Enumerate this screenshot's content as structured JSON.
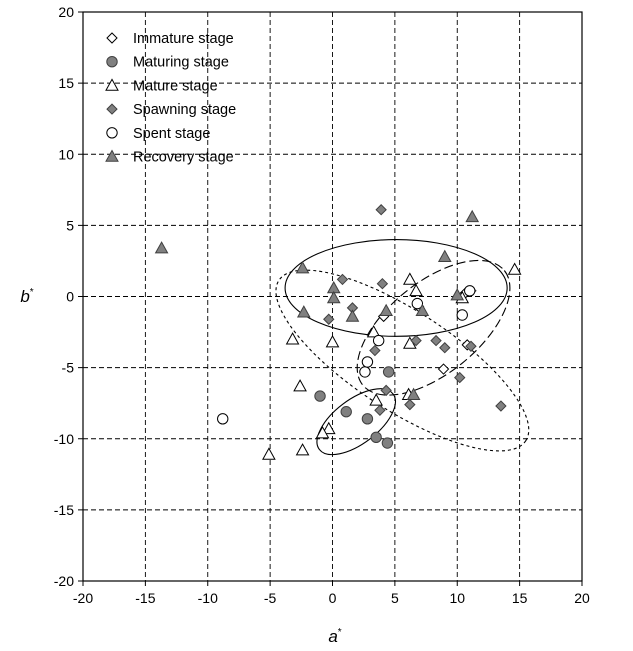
{
  "chart_data": {
    "type": "scatter",
    "title": "",
    "xlabel": "a",
    "xlabel_sup": "*",
    "ylabel": "b",
    "ylabel_sup": "*",
    "xlim": [
      -20,
      20
    ],
    "ylim": [
      -20,
      20
    ],
    "xticks": [
      -20,
      -15,
      -10,
      -5,
      0,
      5,
      10,
      15,
      20
    ],
    "yticks": [
      -20,
      -15,
      -10,
      -5,
      0,
      5,
      10,
      15,
      20
    ],
    "grid": "dashed",
    "legend_position": "top-left",
    "series": [
      {
        "name": "Immature stage",
        "marker": "diamond-open",
        "points": [
          [
            10.8,
            -3.4
          ],
          [
            8.9,
            -5.1
          ],
          [
            4.1,
            -1.4
          ],
          [
            6.9,
            -0.7
          ],
          [
            10.6,
            0.2
          ]
        ]
      },
      {
        "name": "Maturing stage",
        "marker": "circle-filled",
        "points": [
          [
            -1.0,
            -7.0
          ],
          [
            1.1,
            -8.1
          ],
          [
            3.5,
            -9.9
          ],
          [
            4.4,
            -10.3
          ],
          [
            4.5,
            -5.3
          ],
          [
            2.8,
            -8.6
          ]
        ]
      },
      {
        "name": "Mature stage",
        "marker": "triangle-open",
        "points": [
          [
            -5.1,
            -11.1
          ],
          [
            -2.4,
            -10.8
          ],
          [
            -2.6,
            -6.3
          ],
          [
            -3.2,
            -3.0
          ],
          [
            -0.3,
            -9.3
          ],
          [
            0.0,
            -3.2
          ],
          [
            3.3,
            -2.5
          ],
          [
            3.5,
            -7.3
          ],
          [
            6.2,
            -3.3
          ],
          [
            6.1,
            -6.9
          ],
          [
            6.2,
            1.2
          ],
          [
            6.7,
            0.4
          ],
          [
            10.4,
            -0.1
          ],
          [
            14.6,
            1.9
          ],
          [
            -0.8,
            -9.6
          ]
        ]
      },
      {
        "name": "Spawning stage",
        "marker": "diamond-filled",
        "points": [
          [
            3.9,
            6.1
          ],
          [
            0.8,
            1.2
          ],
          [
            4.0,
            0.9
          ],
          [
            1.6,
            -0.8
          ],
          [
            -0.3,
            -1.6
          ],
          [
            3.4,
            -3.8
          ],
          [
            4.3,
            -6.6
          ],
          [
            3.8,
            -8.0
          ],
          [
            6.7,
            -3.1
          ],
          [
            8.3,
            -3.1
          ],
          [
            9.0,
            -3.6
          ],
          [
            10.2,
            -5.7
          ],
          [
            13.5,
            -7.7
          ],
          [
            6.2,
            -7.6
          ],
          [
            11.1,
            -3.5
          ],
          [
            11.1,
            0.4
          ]
        ]
      },
      {
        "name": "Spent stage",
        "marker": "circle-open",
        "points": [
          [
            -8.8,
            -8.6
          ],
          [
            2.6,
            -5.3
          ],
          [
            2.8,
            -4.6
          ],
          [
            3.7,
            -3.1
          ],
          [
            6.8,
            -0.5
          ],
          [
            10.4,
            -1.3
          ],
          [
            11.0,
            0.4
          ]
        ]
      },
      {
        "name": "Recovery stage",
        "marker": "triangle-filled",
        "points": [
          [
            -13.7,
            3.4
          ],
          [
            -2.4,
            2.0
          ],
          [
            -2.3,
            -1.1
          ],
          [
            0.1,
            0.6
          ],
          [
            0.1,
            -0.1
          ],
          [
            1.6,
            -1.4
          ],
          [
            4.3,
            -1.0
          ],
          [
            7.2,
            -1.0
          ],
          [
            9.0,
            2.8
          ],
          [
            10.0,
            0.1
          ],
          [
            11.2,
            5.6
          ],
          [
            6.5,
            -6.9
          ]
        ]
      }
    ],
    "ellipses": [
      {
        "style": "solid",
        "cx": 5.1,
        "cy": 0.6,
        "rx": 8.9,
        "ry": 3.4,
        "angle": 0
      },
      {
        "style": "long-dash",
        "cx": 8.1,
        "cy": -2.2,
        "rx": 7.3,
        "ry": 3.2,
        "angle": -39
      },
      {
        "style": "short-dash",
        "cx": 5.6,
        "cy": -4.5,
        "rx": 11.8,
        "ry": 3.5,
        "angle": 33
      },
      {
        "style": "solid",
        "cx": 1.9,
        "cy": -8.8,
        "rx": 3.7,
        "ry": 1.55,
        "angle": -37
      }
    ]
  }
}
